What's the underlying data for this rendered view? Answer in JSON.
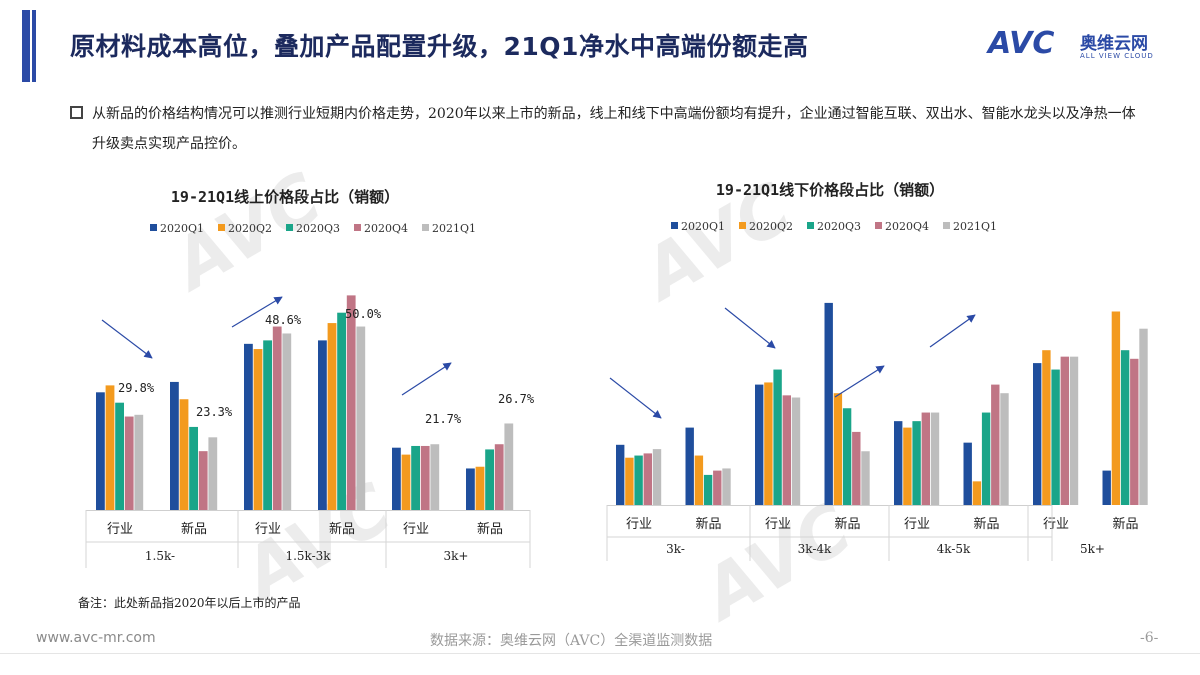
{
  "header": {
    "title": "原材料成本高位，叠加产品配置升级，21Q1净水中高端份额走高",
    "accent": "#2b4aa6"
  },
  "logo": {
    "main": "AVC",
    "cn": "奥维云网",
    "en": "ALL VIEW CLOUD"
  },
  "description": "从新品的价格结构情况可以推测行业短期内价格走势，2020年以来上市的新品，线上和线下中高端份额均有提升，企业通过智能互联、双出水、智能水龙头以及净热一体升级卖点实现产品控价。",
  "series_colors": [
    "#1f4e9c",
    "#f39a1e",
    "#1aa589",
    "#c07585",
    "#bdbdbd"
  ],
  "chart_data": [
    {
      "type": "bar",
      "title": "19-21Q1线上价格段占比（销额）",
      "legend": [
        "2020Q1",
        "2020Q2",
        "2020Q3",
        "2020Q4",
        "2021Q1"
      ],
      "groups": [
        {
          "label": "1.5k-",
          "sub": [
            "行业",
            "新品"
          ]
        },
        {
          "label": "1.5k-3k",
          "sub": [
            "行业",
            "新品"
          ]
        },
        {
          "label": "3k+",
          "sub": [
            "行业",
            "新品"
          ]
        }
      ],
      "clusters": [
        [
          34,
          36,
          31,
          27,
          27.5
        ],
        [
          37,
          32,
          24,
          17,
          21
        ],
        [
          48,
          46.5,
          49,
          53,
          51
        ],
        [
          49,
          54,
          57,
          62,
          53
        ],
        [
          18,
          16,
          18.5,
          18.5,
          19
        ],
        [
          12,
          12.5,
          17.5,
          19,
          25
        ]
      ],
      "data_labels": [
        {
          "cluster": 0,
          "text": "29.8%"
        },
        {
          "cluster": 1,
          "text": "23.3%"
        },
        {
          "cluster": 2,
          "text": "48.6%"
        },
        {
          "cluster": 3,
          "text": "50.0%"
        },
        {
          "cluster": 4,
          "text": "21.7%"
        },
        {
          "cluster": 5,
          "text": "26.7%"
        }
      ],
      "ylim": [
        0,
        65
      ]
    },
    {
      "type": "bar",
      "title": "19-21Q1线下价格段占比（销额）",
      "legend": [
        "2020Q1",
        "2020Q2",
        "2020Q3",
        "2020Q4",
        "2021Q1"
      ],
      "groups": [
        {
          "label": "3k-",
          "sub": [
            "行业",
            "新品"
          ]
        },
        {
          "label": "3k-4k",
          "sub": [
            "行业",
            "新品"
          ]
        },
        {
          "label": "4k-5k",
          "sub": [
            "行业",
            "新品"
          ]
        },
        {
          "label": "5k+",
          "sub": [
            "行业",
            "新品"
          ]
        }
      ],
      "clusters": [
        [
          14,
          11,
          11.5,
          12,
          13
        ],
        [
          18,
          11.5,
          7,
          8,
          8.5
        ],
        [
          28,
          28.5,
          31.5,
          25.5,
          25
        ],
        [
          47,
          26,
          22.5,
          17,
          12.5
        ],
        [
          19.5,
          18,
          19.5,
          21.5,
          21.5
        ],
        [
          14.5,
          5.5,
          21.5,
          28,
          26
        ],
        [
          33,
          36,
          31.5,
          34.5,
          34.5
        ],
        [
          8,
          45,
          36,
          34,
          41
        ]
      ],
      "data_labels": [],
      "ylim": [
        0,
        50
      ]
    }
  ],
  "note": "备注：此处新品指2020年以后上市的产品",
  "footer": {
    "url": "www.avc-mr.com",
    "source": "数据来源：奥维云网（AVC）全渠道监测数据",
    "page": "-6-"
  }
}
